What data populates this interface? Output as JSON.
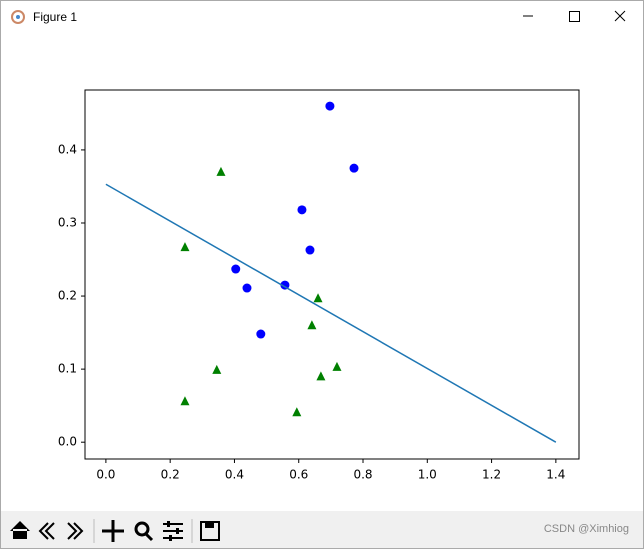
{
  "window": {
    "title": "Figure 1"
  },
  "chart_data": {
    "type": "scatter",
    "xlim": [
      -0.065,
      1.472
    ],
    "ylim": [
      -0.023,
      0.482
    ],
    "xticks": [
      {
        "value": 0,
        "label": "0.0"
      },
      {
        "value": 0.2,
        "label": "0.2"
      },
      {
        "value": 0.4,
        "label": "0.4"
      },
      {
        "value": 0.6,
        "label": "0.6"
      },
      {
        "value": 0.8,
        "label": "0.8"
      },
      {
        "value": 1.0,
        "label": "1.0"
      },
      {
        "value": 1.2,
        "label": "1.2"
      },
      {
        "value": 1.4,
        "label": "1.4"
      }
    ],
    "yticks": [
      {
        "value": 0,
        "label": "0.0"
      },
      {
        "value": 0.1,
        "label": "0.1"
      },
      {
        "value": 0.2,
        "label": "0.2"
      },
      {
        "value": 0.3,
        "label": "0.3"
      },
      {
        "value": 0.4,
        "label": "0.4"
      }
    ],
    "series": [
      {
        "color": "#0000ff",
        "marker": "circle",
        "x": [
          0.697,
          0.772,
          0.61,
          0.635,
          0.404,
          0.439,
          0.557,
          0.482
        ],
        "values": [
          0.46,
          0.375,
          0.318,
          0.263,
          0.237,
          0.211,
          0.215,
          0.148
        ]
      },
      {
        "color": "#008000",
        "marker": "triangle",
        "x": [
          0.358,
          0.246,
          0.66,
          0.641,
          0.345,
          0.719,
          0.669,
          0.246,
          0.594
        ],
        "values": [
          0.37,
          0.267,
          0.197,
          0.16,
          0.099,
          0.103,
          0.09,
          0.056,
          0.041
        ]
      },
      {
        "color": "#1f77b4",
        "marker": "line",
        "x": [
          0,
          1.4
        ],
        "values": [
          0.353,
          0
        ]
      }
    ]
  },
  "watermark": "CSDN @Ximhiog"
}
